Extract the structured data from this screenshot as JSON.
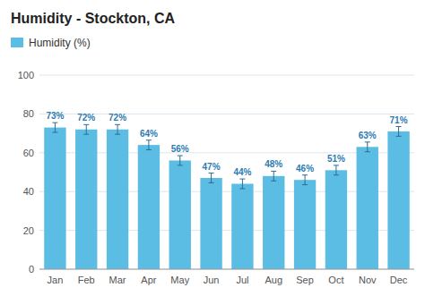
{
  "chart_data": {
    "type": "bar",
    "title": "Humidity - Stockton, CA",
    "categories": [
      "Jan",
      "Feb",
      "Mar",
      "Apr",
      "May",
      "Jun",
      "Jul",
      "Aug",
      "Sep",
      "Oct",
      "Nov",
      "Dec"
    ],
    "series": [
      {
        "name": "Humidity (%)",
        "color": "#5bbde4",
        "values": [
          73,
          72,
          72,
          64,
          56,
          47,
          44,
          48,
          46,
          51,
          63,
          71
        ],
        "errors": [
          2.5,
          2.5,
          2.5,
          2.5,
          2.5,
          2.5,
          2.5,
          2.5,
          2.5,
          2.5,
          2.5,
          2.5
        ],
        "value_labels": [
          "73%",
          "72%",
          "72%",
          "64%",
          "56%",
          "47%",
          "44%",
          "48%",
          "46%",
          "51%",
          "63%",
          "71%"
        ]
      }
    ],
    "ylim": [
      0,
      100
    ],
    "yticks": [
      0,
      20,
      40,
      60,
      80,
      100
    ],
    "grid": true,
    "legend": "top",
    "data_labels": true
  }
}
